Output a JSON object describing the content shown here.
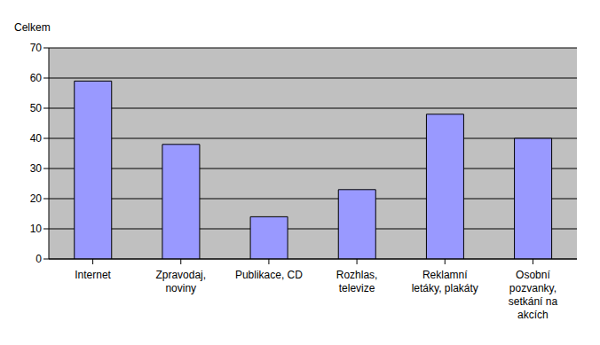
{
  "chart_data": {
    "type": "bar",
    "ylabel": "Celkem",
    "categories": [
      "Internet",
      "Zpravodaj, noviny",
      "Publikace, CD",
      "Rozhlas, televize",
      "Reklamní letáky, plakáty",
      "Osobní pozvanky, setkání na akcích"
    ],
    "values": [
      59,
      38,
      14,
      23,
      48,
      40
    ],
    "color": "#9999ff",
    "ylim": [
      0,
      70
    ],
    "yticks": [
      0,
      10,
      20,
      30,
      40,
      50,
      60,
      70
    ],
    "grid": true
  }
}
